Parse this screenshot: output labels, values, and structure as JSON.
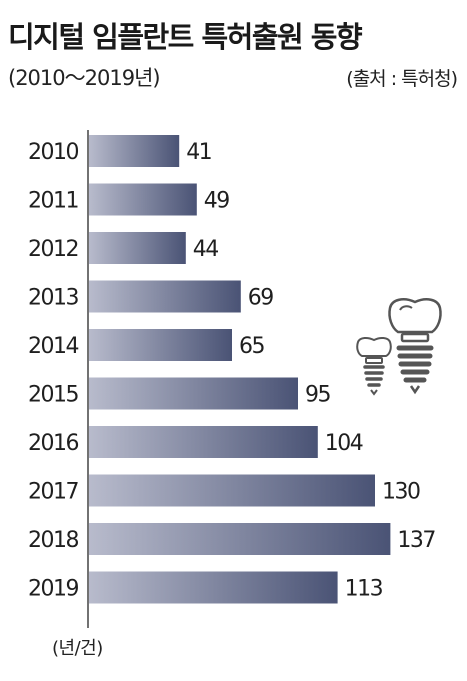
{
  "header": {
    "title": "디지털 임플란트 특허출원 동향",
    "period": "(2010～2019년)",
    "source": "(출처 : 특허청)"
  },
  "unit_label": "(년/건)",
  "icons": [
    "small-dental-implant-icon",
    "large-dental-implant-icon"
  ],
  "colors": {
    "bar_start": "#b8bbcc",
    "bar_end": "#4a5375",
    "axis": "#444444",
    "text": "#1f1f1f"
  },
  "chart_data": {
    "type": "bar",
    "orientation": "horizontal",
    "title": "디지털 임플란트 특허출원 동향",
    "subtitle": "(2010～2019년)",
    "categories": [
      "2010",
      "2011",
      "2012",
      "2013",
      "2014",
      "2015",
      "2016",
      "2017",
      "2018",
      "2019"
    ],
    "values": [
      41,
      49,
      44,
      69,
      65,
      95,
      104,
      130,
      137,
      113
    ],
    "unit": "(년/건)",
    "grid": false,
    "data_labels": true,
    "legend": "none"
  }
}
